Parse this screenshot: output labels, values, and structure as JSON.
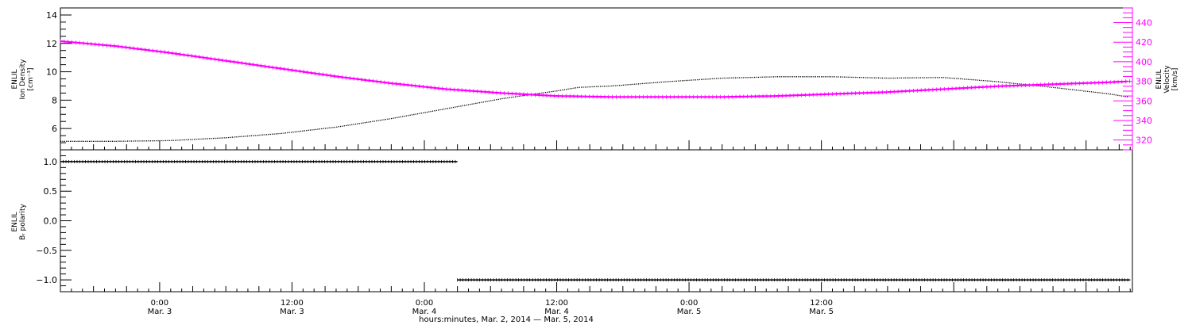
{
  "x_axis": {
    "title": "hours:minutes, Mar.  2, 2014 — Mar.  5, 2014",
    "range_hours_from_mar2_0000": [
      15,
      112.2
    ],
    "ticks": [
      {
        "hour": 24,
        "time": "0:00",
        "date": "Mar. 3"
      },
      {
        "hour": 36,
        "time": "12:00",
        "date": "Mar. 3"
      },
      {
        "hour": 48,
        "time": "0:00",
        "date": "Mar. 4"
      },
      {
        "hour": 60,
        "time": "12:00",
        "date": "Mar. 4"
      },
      {
        "hour": 72,
        "time": "0:00",
        "date": "Mar. 5"
      },
      {
        "hour": 84,
        "time": "12:00",
        "date": "Mar. 5"
      }
    ]
  },
  "colors": {
    "density": "#000000",
    "velocity": "#ff00ff",
    "polarity": "#000000"
  },
  "chart_data": [
    {
      "type": "line",
      "panel": "top",
      "left_axis": {
        "label_lines": [
          "ENLIL",
          "Ion Density",
          "[cm⁻³]"
        ],
        "ylim": [
          4.5,
          14.5
        ],
        "ticks": [
          6,
          8,
          10,
          12,
          14
        ]
      },
      "right_axis": {
        "label_lines": [
          "ENLIL",
          "Velocity",
          "[km/s]"
        ],
        "ylim": [
          310,
          455
        ],
        "ticks": [
          320,
          340,
          360,
          380,
          400,
          420,
          440
        ]
      },
      "series": [
        {
          "axis": "left",
          "x": [
            15,
            20,
            25,
            30,
            35,
            40,
            45,
            50,
            55,
            60,
            62,
            65,
            70,
            75,
            80,
            85,
            90,
            95,
            100,
            105,
            110,
            112
          ],
          "y": [
            5.1,
            5.1,
            5.15,
            5.35,
            5.65,
            6.1,
            6.7,
            7.4,
            8.1,
            8.65,
            8.9,
            9.0,
            9.3,
            9.55,
            9.65,
            9.65,
            9.55,
            9.6,
            9.3,
            8.9,
            8.45,
            8.2
          ]
        },
        {
          "axis": "right",
          "x": [
            15,
            20,
            25,
            30,
            35,
            40,
            45,
            50,
            55,
            60,
            65,
            70,
            75,
            80,
            85,
            90,
            95,
            100,
            105,
            110,
            112
          ],
          "y": [
            421,
            416,
            409,
            401,
            393,
            385,
            378,
            372,
            368,
            365,
            364,
            364,
            364,
            365,
            367,
            369,
            372,
            375,
            377,
            379,
            380
          ]
        }
      ]
    },
    {
      "type": "scatter",
      "panel": "bottom",
      "left_axis": {
        "label_lines": [
          "ENLIL",
          "Bᵣ polarity"
        ],
        "ylim": [
          -1.2,
          1.2
        ],
        "ticks": [
          -1.0,
          -0.5,
          0.0,
          0.5,
          1.0
        ],
        "tick_labels": [
          "−1.0",
          "−0.5",
          "0.0",
          "0.5",
          "1.0"
        ]
      },
      "series": [
        {
          "x_range": [
            15,
            51
          ],
          "y": 1.0
        },
        {
          "x_range": [
            51,
            112
          ],
          "y": -1.0
        }
      ]
    }
  ]
}
